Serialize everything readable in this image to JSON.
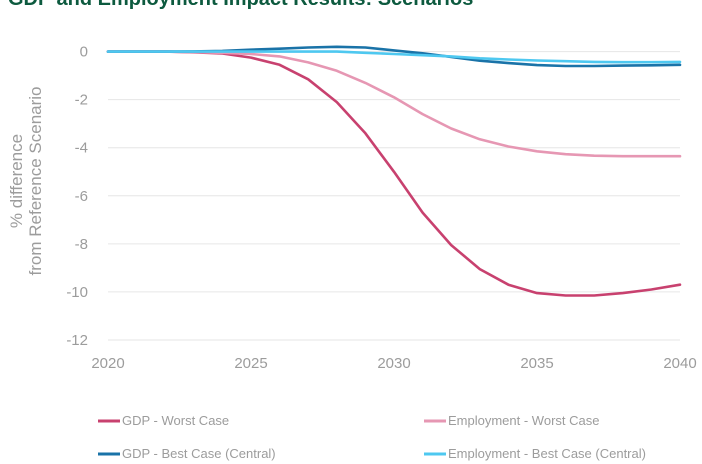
{
  "chart_data": {
    "type": "line",
    "title": "GDP and Employment Impact Results: Scenarios",
    "xlabel": "",
    "ylabel": [
      "% difference",
      "from Reference Scenario"
    ],
    "xlim": [
      2020,
      2040
    ],
    "ylim": [
      -12,
      0.4
    ],
    "x_ticks": [
      2020,
      2025,
      2030,
      2035,
      2040
    ],
    "y_ticks": [
      0,
      -2,
      -4,
      -6,
      -8,
      -10,
      -12
    ],
    "grid": true,
    "legend_position": "bottom",
    "x": [
      2020,
      2021,
      2022,
      2023,
      2024,
      2025,
      2026,
      2027,
      2028,
      2029,
      2030,
      2031,
      2032,
      2033,
      2034,
      2035,
      2036,
      2037,
      2038,
      2039,
      2040
    ],
    "series": [
      {
        "name": "GDP - Worst Case",
        "color": "#c8416f",
        "values": [
          0,
          0,
          0,
          -0.03,
          -0.08,
          -0.25,
          -0.55,
          -1.15,
          -2.1,
          -3.4,
          -5.0,
          -6.7,
          -8.05,
          -9.05,
          -9.7,
          -10.05,
          -10.15,
          -10.15,
          -10.05,
          -9.9,
          -9.7
        ]
      },
      {
        "name": "Employment - Worst Case",
        "color": "#e697b3",
        "values": [
          0,
          0,
          0,
          -0.02,
          -0.05,
          -0.1,
          -0.2,
          -0.45,
          -0.8,
          -1.3,
          -1.9,
          -2.6,
          -3.2,
          -3.65,
          -3.95,
          -4.15,
          -4.27,
          -4.33,
          -4.35,
          -4.35,
          -4.35
        ]
      },
      {
        "name": "GDP - Best Case (Central)",
        "color": "#1a73a8",
        "values": [
          0,
          0,
          0,
          0.01,
          0.03,
          0.08,
          0.12,
          0.17,
          0.2,
          0.17,
          0.05,
          -0.07,
          -0.22,
          -0.38,
          -0.48,
          -0.56,
          -0.6,
          -0.6,
          -0.58,
          -0.57,
          -0.55
        ]
      },
      {
        "name": "Employment - Best Case (Central)",
        "color": "#4ec8f0",
        "values": [
          0,
          0,
          0,
          0,
          0,
          0,
          0,
          0,
          0,
          -0.05,
          -0.1,
          -0.15,
          -0.2,
          -0.28,
          -0.33,
          -0.37,
          -0.4,
          -0.43,
          -0.44,
          -0.44,
          -0.43
        ]
      }
    ]
  }
}
